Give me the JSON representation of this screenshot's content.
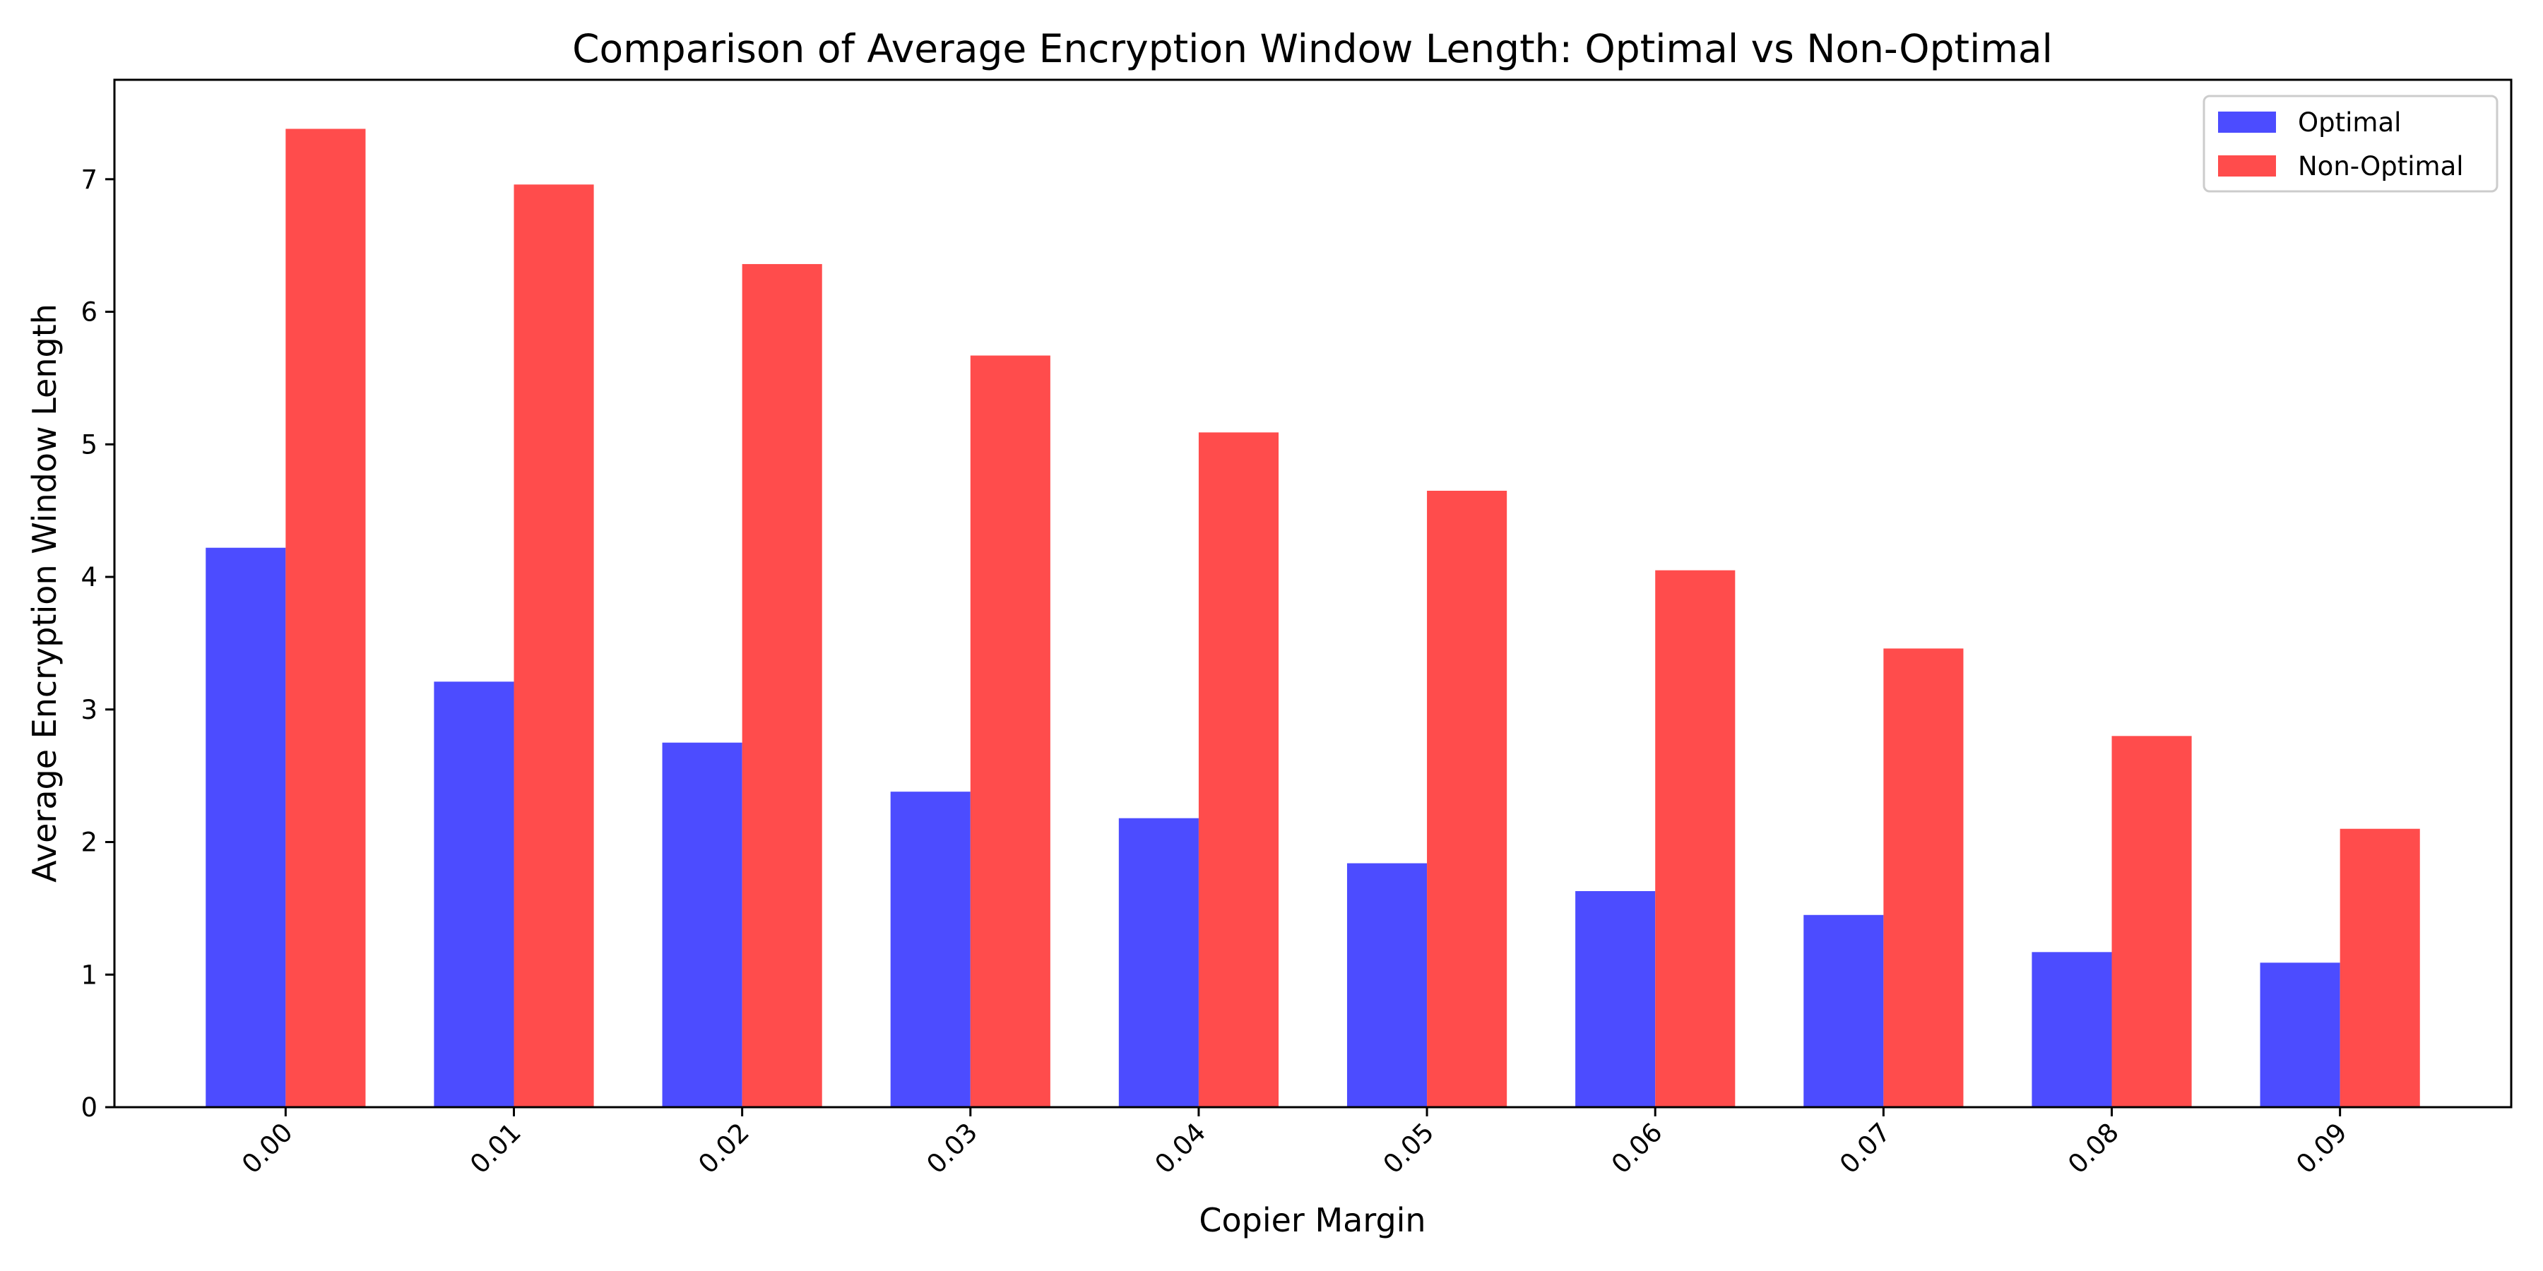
{
  "chart_data": {
    "type": "bar",
    "title": "Comparison of Average Encryption Window Length: Optimal vs Non-Optimal",
    "xlabel": "Copier Margin",
    "ylabel": "Average Encryption Window Length",
    "categories": [
      "0.00",
      "0.01",
      "0.02",
      "0.03",
      "0.04",
      "0.05",
      "0.06",
      "0.07",
      "0.08",
      "0.09"
    ],
    "series": [
      {
        "name": "Optimal",
        "color": "#4c4cff",
        "values": [
          4.22,
          3.21,
          2.75,
          2.38,
          2.18,
          1.84,
          1.63,
          1.45,
          1.17,
          1.09
        ]
      },
      {
        "name": "Non-Optimal",
        "color": "#ff4c4c",
        "values": [
          7.38,
          6.96,
          6.36,
          5.67,
          5.09,
          4.65,
          4.05,
          3.46,
          2.8,
          2.1
        ]
      }
    ],
    "ylim": [
      0,
      7.75
    ],
    "yticks": [
      0,
      1,
      2,
      3,
      4,
      5,
      6,
      7
    ],
    "xtick_rotation": 45,
    "grid": false,
    "legend_position": "upper right"
  }
}
